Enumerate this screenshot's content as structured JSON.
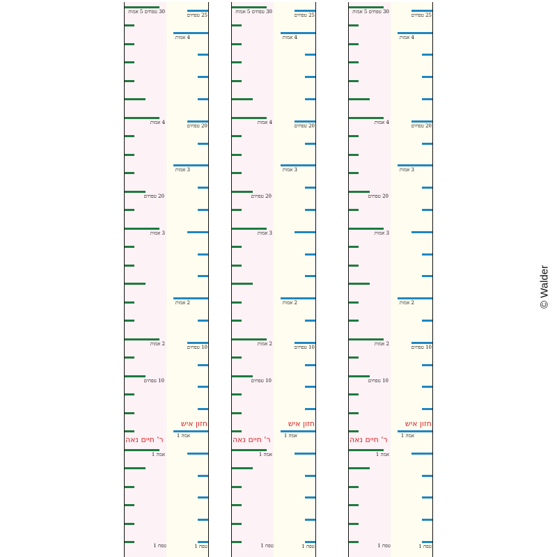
{
  "copyright": "© Walder",
  "rulers": [
    {
      "left_scale": {
        "name": "ר' חיים נאה",
        "unit_tefach": "טפח 1",
        "unit_amah": "אמה 1",
        "label_10": "10 טפחים",
        "label_20": "20 טפחים",
        "label_2": "2 אמות",
        "label_3": "3 אמות",
        "label_4": "4 אמות",
        "label_top": "30 טפחים 5 אמות"
      },
      "right_scale": {
        "name": "חזון איש",
        "unit_tefach": "טפח 1",
        "unit_amah": "אמה 1",
        "label_10": "10 טפחים",
        "label_20": "20 טפחים",
        "label_25": "25 טפחים",
        "label_2": "2 אמות",
        "label_3": "3 אמות",
        "label_4": "4 אמות"
      }
    },
    {
      "left_scale": {
        "name": "ר' חיים נאה",
        "unit_tefach": "טפח 1",
        "unit_amah": "אמה 1",
        "label_10": "10 טפחים",
        "label_20": "20 טפחים",
        "label_2": "2 אמות",
        "label_3": "3 אמות",
        "label_4": "4 אמות",
        "label_top": "30 טפחים 5 אמות"
      },
      "right_scale": {
        "name": "חזון איש",
        "unit_tefach": "טפח 1",
        "unit_amah": "אמה 1",
        "label_10": "10 טפחים",
        "label_20": "20 טפחים",
        "label_25": "25 טפחים",
        "label_2": "2 אמות",
        "label_3": "3 אמות",
        "label_4": "4 אמות"
      }
    },
    {
      "left_scale": {
        "name": "ר' חיים נאה",
        "unit_tefach": "טפח 1",
        "unit_amah": "אמה 1",
        "label_10": "10 טפחים",
        "label_20": "20 טפחים",
        "label_2": "2 אמות",
        "label_3": "3 אמות",
        "label_4": "4 אמות",
        "label_top": "30 טפחים 5 אמות"
      },
      "right_scale": {
        "name": "חזון איש",
        "unit_tefach": "טפח 1",
        "unit_amah": "אמה 1",
        "label_10": "10 טפחים",
        "label_20": "20 טפחים",
        "label_25": "25 טפחים",
        "label_2": "2 אמות",
        "label_3": "3 אמות",
        "label_4": "4 אמות"
      }
    }
  ]
}
